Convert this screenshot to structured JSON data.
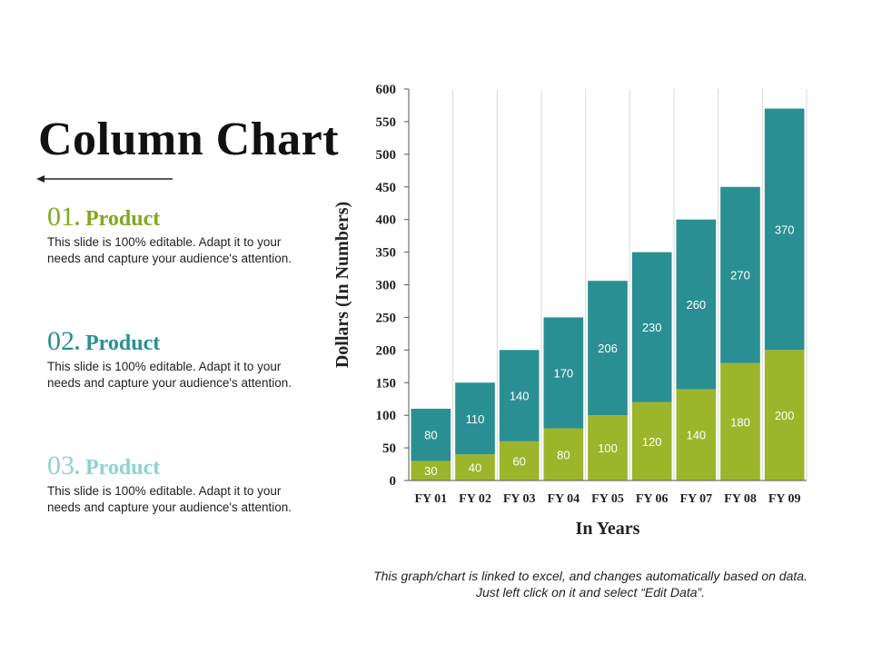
{
  "slide": {
    "title": "Column Chart",
    "footnote": "This graph/chart is linked to excel, and changes automatically based on data. Just left click on it and select “Edit Data”."
  },
  "products": [
    {
      "number": "01",
      "label": ". Product",
      "color": "#82a81e",
      "description": "This slide is 100% editable. Adapt it to your needs and capture your audience's attention."
    },
    {
      "number": "02",
      "label": ". Product",
      "color": "#2a8f92",
      "description": "This slide is 100% editable. Adapt it to your needs and capture your audience's attention."
    },
    {
      "number": "03",
      "label": ". Product",
      "color": "#8fd1d5",
      "description": "This slide is 100% editable. Adapt it to your needs and capture your audience's attention."
    }
  ],
  "chart_data": {
    "type": "bar",
    "stacked": true,
    "title": "",
    "xlabel": "In Years",
    "ylabel": "Dollars (In Numbers)",
    "categories": [
      "FY 01",
      "FY 02",
      "FY 03",
      "FY 04",
      "FY 05",
      "FY 06",
      "FY 07",
      "FY 08",
      "FY 09"
    ],
    "ylim": [
      0,
      600
    ],
    "yticks": [
      0,
      50,
      100,
      150,
      200,
      250,
      300,
      350,
      400,
      450,
      500,
      550,
      600
    ],
    "grid": "vertical",
    "legend": "none",
    "series": [
      {
        "values": [
          30,
          40,
          60,
          80,
          100,
          120,
          140,
          180,
          200
        ],
        "color": "#9db52b"
      },
      {
        "values": [
          80,
          110,
          140,
          170,
          206,
          230,
          260,
          270,
          370
        ],
        "color": "#2a8f92"
      }
    ]
  }
}
